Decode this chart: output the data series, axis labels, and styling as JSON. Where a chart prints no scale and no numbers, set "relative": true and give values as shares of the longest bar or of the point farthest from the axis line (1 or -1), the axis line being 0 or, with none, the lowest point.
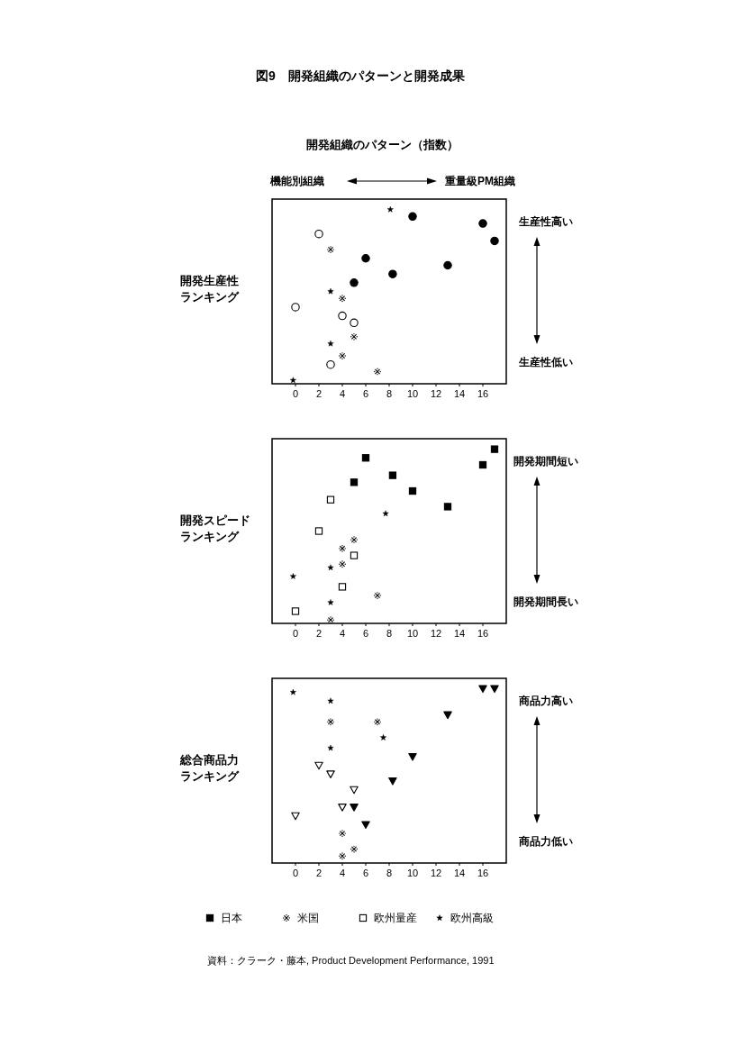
{
  "chart_data": [
    {
      "type": "scatter",
      "title": "図9　開発組織のパターンと開発成果",
      "subtitle": "開発組織のパターン（指数）",
      "ylabel": "開発生産性ランキング",
      "annotations": [
        "機能別組織",
        "重量級PM組織",
        "生産性高い",
        "生産性低い"
      ],
      "relative": true,
      "xlim": [
        -2,
        18
      ],
      "xticks": [
        0,
        2,
        4,
        6,
        8,
        10,
        12,
        14,
        16
      ],
      "series": [
        {
          "color": "#000000",
          "marker": "circle",
          "x": [
            10,
            16,
            17,
            6,
            13,
            8.3,
            5
          ],
          "values": [
            0.96,
            0.92,
            0.82,
            0.72,
            0.68,
            0.63,
            0.58
          ]
        },
        {
          "color": "#000000",
          "marker": "cross",
          "x": [
            3,
            4,
            5,
            4,
            7
          ],
          "values": [
            0.77,
            0.49,
            0.27,
            0.16,
            0.07
          ]
        },
        {
          "color": "#ffffff",
          "marker": "circle",
          "x": [
            2,
            0,
            4,
            5,
            3
          ],
          "values": [
            0.86,
            0.44,
            0.39,
            0.35,
            0.11
          ]
        },
        {
          "color": "#000000",
          "marker": "star",
          "x": [
            8.1,
            3,
            3,
            -0.2
          ],
          "values": [
            1,
            0.53,
            0.23,
            0.02
          ]
        }
      ]
    },
    {
      "type": "scatter",
      "ylabel": "開発スピードランキング",
      "annotations": [
        "開発期間短い",
        "開発期間長い"
      ],
      "relative": true,
      "xlim": [
        -2,
        18
      ],
      "xticks": [
        0,
        2,
        4,
        6,
        8,
        10,
        12,
        14,
        16
      ],
      "legend": "bottom",
      "series": [
        {
          "name": "日本",
          "color": "#000000",
          "marker": "square",
          "x": [
            17,
            6,
            16,
            8.3,
            5,
            10,
            13
          ],
          "values": [
            1,
            0.95,
            0.91,
            0.85,
            0.81,
            0.76,
            0.67
          ]
        },
        {
          "name": "米国",
          "color": "#000000",
          "marker": "cross",
          "x": [
            5,
            4,
            4,
            7,
            3
          ],
          "values": [
            0.48,
            0.43,
            0.34,
            0.16,
            0.02
          ]
        },
        {
          "name": "欧州量産",
          "color": "#ffffff",
          "marker": "square",
          "x": [
            3,
            2,
            5,
            4,
            0
          ],
          "values": [
            0.71,
            0.53,
            0.39,
            0.21,
            0.07
          ]
        },
        {
          "name": "欧州高級",
          "color": "#000000",
          "marker": "star",
          "x": [
            7.7,
            3,
            -0.2,
            3
          ],
          "values": [
            0.63,
            0.32,
            0.27,
            0.12
          ]
        }
      ]
    },
    {
      "type": "scatter",
      "ylabel": "総合商品力ランキング",
      "annotations": [
        "商品力高い",
        "商品力低い",
        "資料：クラーク・藤本, Product Development Performance, 1991"
      ],
      "relative": true,
      "xlim": [
        -2,
        18
      ],
      "xticks": [
        0,
        2,
        4,
        6,
        8,
        10,
        12,
        14,
        16
      ],
      "series": [
        {
          "color": "#000000",
          "marker": "triangle",
          "x": [
            16,
            17,
            13,
            10,
            8.3,
            5,
            6
          ],
          "values": [
            1,
            1,
            0.85,
            0.61,
            0.47,
            0.32,
            0.22
          ]
        },
        {
          "color": "#000000",
          "marker": "cross",
          "x": [
            3,
            7,
            4,
            5,
            4
          ],
          "values": [
            0.81,
            0.81,
            0.17,
            0.08,
            0.04
          ]
        },
        {
          "color": "#ffffff",
          "marker": "triangle",
          "x": [
            2,
            3,
            5,
            4,
            0
          ],
          "values": [
            0.56,
            0.51,
            0.42,
            0.32,
            0.27
          ]
        },
        {
          "color": "#000000",
          "marker": "star",
          "x": [
            -0.2,
            3,
            7.5,
            3
          ],
          "values": [
            0.98,
            0.93,
            0.72,
            0.66
          ]
        }
      ]
    }
  ]
}
